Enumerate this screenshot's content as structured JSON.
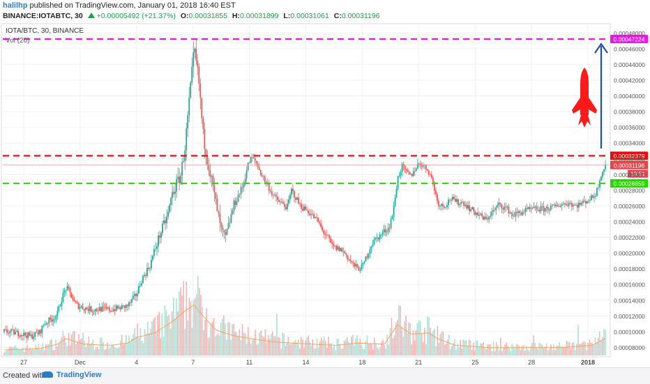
{
  "header": {
    "username": "halilhp",
    "published_text": "published on TradingView.com, January 01, 2018 16:40 EST",
    "symbol_line": "BINANCE:IOTABTC, 30",
    "change": "+0.00005492 (+21.37%)",
    "o_label": "O:",
    "o_value": "0.00031855",
    "h_label": "H:",
    "h_value": "0.00031899",
    "l_label": "L:",
    "l_value": "0.00031061",
    "c_label": "C:",
    "c_value": "0.00031196"
  },
  "legend": {
    "series": "IOTA/BTC, 30, BINANCE",
    "volume": "Vol (20)"
  },
  "footer": {
    "created_with": "Created with",
    "brand": "TradingView"
  },
  "colors": {
    "up": "#26a69a",
    "down": "#ef5350",
    "magenta_line": "#e619e6",
    "red_line": "#e01010",
    "green_line": "#2ad400",
    "arrow": "#1a4fa0",
    "rocket": "#ff1a1a",
    "vol_ma": "#f7a35c"
  },
  "icons": [
    "rocket-icon",
    "up-arrow-icon",
    "tradingview-logo-icon"
  ],
  "chart_data": {
    "type": "candlestick",
    "y_ticks": [
      "0.00048000",
      "0.00046000",
      "0.00044000",
      "0.00042000",
      "0.00040000",
      "0.00038000",
      "0.00036000",
      "0.00034000",
      "0.00032000",
      "0.00030000",
      "0.00028000",
      "0.00026000",
      "0.00024000",
      "0.00022000",
      "0.00020000",
      "0.00018000",
      "0.00016000",
      "0.00014000",
      "0.00012000",
      "0.00010000",
      "0.00008000"
    ],
    "ylim": [
      6.8e-05,
      0.00049
    ],
    "x_ticks": [
      "27",
      "Dec",
      "4",
      "7",
      "11",
      "14",
      "18",
      "21",
      "25",
      "28",
      "2018"
    ],
    "x_ticks_bold": [
      "2018"
    ],
    "levels": [
      {
        "name": "resistance-target",
        "value": 0.00047224,
        "label": "0.00047224",
        "color": "#e619e6"
      },
      {
        "name": "resistance",
        "value": 0.00032379,
        "label": "0.00032379",
        "color": "#e01010"
      },
      {
        "name": "support",
        "value": 0.00028859,
        "label": "0.00028859",
        "color": "#2ad400"
      }
    ],
    "last_price": {
      "value": 0.00031196,
      "label": "0.00031196",
      "countdown": "19:51"
    },
    "price_path": [
      [
        0,
        0.0001
      ],
      [
        2,
        9.9e-05
      ],
      [
        4,
        9.7e-05
      ],
      [
        6,
        9.4e-05
      ],
      [
        8,
        9.9e-05
      ],
      [
        9,
        0.00011
      ],
      [
        11,
        0.000117
      ],
      [
        12,
        0.000122
      ],
      [
        13,
        0.000142
      ],
      [
        14,
        0.000156
      ],
      [
        15,
        0.000148
      ],
      [
        16,
        0.000135
      ],
      [
        18,
        0.00013
      ],
      [
        20,
        0.000128
      ],
      [
        22,
        0.000129
      ],
      [
        24,
        0.000128
      ],
      [
        26,
        0.00013
      ],
      [
        28,
        0.000133
      ],
      [
        30,
        0.000148
      ],
      [
        31,
        0.000165
      ],
      [
        33,
        0.000185
      ],
      [
        35,
        0.00022
      ],
      [
        37,
        0.000248
      ],
      [
        38,
        0.000275
      ],
      [
        40,
        0.0003
      ],
      [
        41,
        0.00034
      ],
      [
        42,
        0.0004
      ],
      [
        43,
        0.000458
      ],
      [
        44,
        0.00042
      ],
      [
        45,
        0.00035
      ],
      [
        46,
        0.00032
      ],
      [
        47,
        0.00029
      ],
      [
        48,
        0.00026
      ],
      [
        49,
        0.00023
      ],
      [
        50,
        0.000218
      ],
      [
        51,
        0.00024
      ],
      [
        52,
        0.000262
      ],
      [
        54,
        0.000285
      ],
      [
        55,
        0.00031
      ],
      [
        56,
        0.000322
      ],
      [
        57,
        0.000315
      ],
      [
        58,
        0.000302
      ],
      [
        59,
        0.000292
      ],
      [
        60,
        0.000282
      ],
      [
        61,
        0.000272
      ],
      [
        62,
        0.000266
      ],
      [
        63,
        0.000262
      ],
      [
        64,
        0.000258
      ],
      [
        65,
        0.00028
      ],
      [
        66,
        0.00027
      ],
      [
        67,
        0.00026
      ],
      [
        69,
        0.000252
      ],
      [
        71,
        0.00024
      ],
      [
        72,
        0.000228
      ],
      [
        73,
        0.000222
      ],
      [
        74,
        0.00021
      ],
      [
        75,
        0.000206
      ],
      [
        76,
        0.000205
      ],
      [
        77,
        0.0002
      ],
      [
        78,
        0.000192
      ],
      [
        79,
        0.000185
      ],
      [
        80,
        0.00018
      ],
      [
        81,
        0.000182
      ],
      [
        82,
        0.000196
      ],
      [
        83,
        0.00021
      ],
      [
        84,
        0.000218
      ],
      [
        85,
        0.000222
      ],
      [
        86,
        0.000228
      ],
      [
        87,
        0.000232
      ],
      [
        88,
        0.000252
      ],
      [
        89,
        0.000295
      ],
      [
        90,
        0.00031
      ],
      [
        91,
        0.000302
      ],
      [
        92,
        0.000298
      ],
      [
        93,
        0.000308
      ],
      [
        94,
        0.000315
      ],
      [
        95,
        0.00031
      ],
      [
        96,
        0.000305
      ],
      [
        97,
        0.00029
      ],
      [
        98,
        0.000265
      ],
      [
        99,
        0.00026
      ],
      [
        100,
        0.000262
      ],
      [
        101,
        0.00027
      ],
      [
        102,
        0.000265
      ],
      [
        104,
        0.000264
      ],
      [
        105,
        0.000258
      ],
      [
        106,
        0.000254
      ],
      [
        107,
        0.00025
      ],
      [
        108,
        0.000246
      ],
      [
        109,
        0.000242
      ],
      [
        110,
        0.00025
      ],
      [
        111,
        0.000255
      ],
      [
        112,
        0.000262
      ],
      [
        114,
        0.000255
      ],
      [
        115,
        0.000248
      ],
      [
        116,
        0.00025
      ],
      [
        117,
        0.000252
      ],
      [
        118,
        0.000254
      ],
      [
        120,
        0.000256
      ],
      [
        122,
        0.000256
      ],
      [
        124,
        0.000258
      ],
      [
        126,
        0.000262
      ],
      [
        128,
        0.000264
      ],
      [
        129,
        0.00026
      ],
      [
        130,
        0.000262
      ],
      [
        131,
        0.000264
      ],
      [
        132,
        0.000268
      ],
      [
        133,
        0.00027
      ],
      [
        134,
        0.000278
      ],
      [
        135,
        0.0003
      ],
      [
        136,
        0.000312
      ]
    ],
    "volume_ylim": [
      0,
      1
    ],
    "volume_path": [
      [
        0,
        0.1
      ],
      [
        8,
        0.12
      ],
      [
        12,
        0.2
      ],
      [
        14,
        0.3
      ],
      [
        18,
        0.2
      ],
      [
        24,
        0.18
      ],
      [
        28,
        0.22
      ],
      [
        30,
        0.32
      ],
      [
        34,
        0.4
      ],
      [
        38,
        0.6
      ],
      [
        41,
        0.8
      ],
      [
        43,
        0.9
      ],
      [
        45,
        0.7
      ],
      [
        48,
        0.45
      ],
      [
        52,
        0.35
      ],
      [
        56,
        0.3
      ],
      [
        60,
        0.25
      ],
      [
        65,
        0.22
      ],
      [
        70,
        0.2
      ],
      [
        75,
        0.18
      ],
      [
        80,
        0.22
      ],
      [
        86,
        0.2
      ],
      [
        89,
        0.55
      ],
      [
        92,
        0.38
      ],
      [
        96,
        0.4
      ],
      [
        98,
        0.3
      ],
      [
        102,
        0.18
      ],
      [
        110,
        0.14
      ],
      [
        118,
        0.14
      ],
      [
        126,
        0.14
      ],
      [
        133,
        0.18
      ],
      [
        136,
        0.3
      ]
    ]
  }
}
